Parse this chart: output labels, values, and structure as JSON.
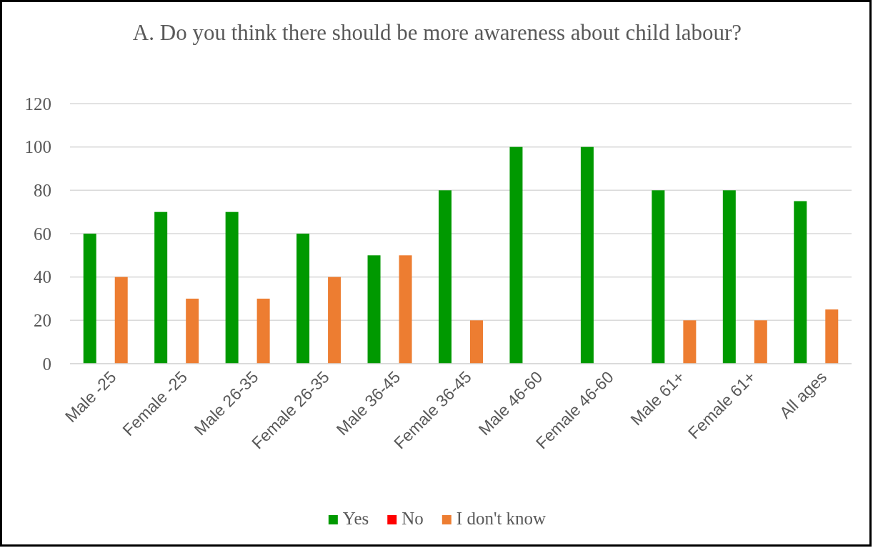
{
  "chart_data": {
    "type": "bar",
    "title": "A. Do you think there should be more awareness about child labour?",
    "categories": [
      "Male -25",
      "Female -25",
      "Male 26-35",
      "Female 26-35",
      "Male 36-45",
      "Female 36-45",
      "Male 46-60",
      "Female 46-60",
      "Male 61+",
      "Female 61+",
      "All ages"
    ],
    "series": [
      {
        "name": "Yes",
        "color": "#009900",
        "values": [
          60,
          70,
          70,
          60,
          50,
          80,
          100,
          100,
          80,
          80,
          75
        ]
      },
      {
        "name": "No",
        "color": "#ff0000",
        "values": [
          0,
          0,
          0,
          0,
          0,
          0,
          0,
          0,
          0,
          0,
          0
        ]
      },
      {
        "name": "I don't know",
        "color": "#ed7d31",
        "values": [
          40,
          30,
          30,
          40,
          50,
          20,
          0,
          0,
          20,
          20,
          25
        ]
      }
    ],
    "ylim": [
      0,
      120
    ],
    "yticks": [
      0,
      20,
      40,
      60,
      80,
      100,
      120
    ],
    "grid": "y",
    "legend": "bottom"
  }
}
